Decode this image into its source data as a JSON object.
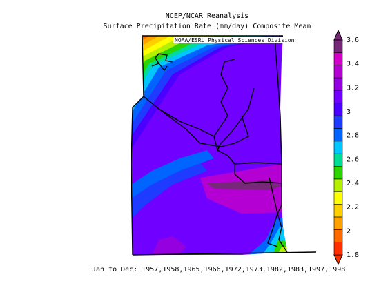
{
  "header": {
    "title_line1": "NCEP/NCAR Reanalysis",
    "title_line2": "Surface Precipitation Rate (mm/day) Composite Mean",
    "credit": "NOAA/ESRL Physical Sciences Division"
  },
  "footer": {
    "period": "Jan to Dec: 1957,1958,1965,1966,1972,1973,1982,1983,1997,1998"
  },
  "chart_data": {
    "type": "heatmap",
    "title": "Surface Precipitation Rate (mm/day) Composite Mean",
    "variable": "Surface Precipitation Rate",
    "units": "mm/day",
    "colorbar": {
      "min": 1.8,
      "max": 3.6,
      "step": 0.1,
      "tick_labels": [
        "1.8",
        "2",
        "2.2",
        "2.4",
        "2.6",
        "2.8",
        "3",
        "3.2",
        "3.4",
        "3.6"
      ],
      "colors": [
        "#ff3000",
        "#ff6a00",
        "#ffa200",
        "#ffd000",
        "#ffff00",
        "#b4f000",
        "#2cd400",
        "#00dc96",
        "#00c8ff",
        "#0064ff",
        "#1e3cff",
        "#4b00ff",
        "#7000ff",
        "#9400e0",
        "#b400d2",
        "#d200c8",
        "#782878"
      ]
    },
    "pattern": "Precipitation increases from the northwest (about 1.8 mm/day) toward the south and southeast (about 3.3-3.4 mm/day), with a maximum band in the southeast and lower values in the far southeast corner."
  }
}
